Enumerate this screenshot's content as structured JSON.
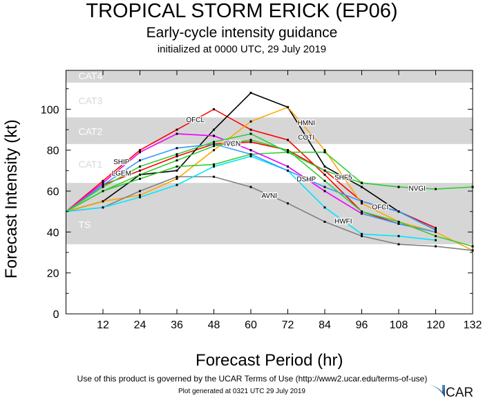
{
  "chart_data": {
    "type": "line",
    "title": "TROPICAL STORM ERICK (EP06)",
    "subtitle": "Early-cycle intensity guidance",
    "initialized": "initialized at 0000 UTC, 29 July 2019",
    "xlabel": "Forecast Period (hr)",
    "ylabel": "Forecast Intensity (kt)",
    "xlim": [
      0,
      132
    ],
    "ylim": [
      0,
      119
    ],
    "xticks": [
      12,
      24,
      36,
      48,
      60,
      72,
      84,
      96,
      108,
      120,
      132
    ],
    "yticks": [
      0,
      20,
      40,
      60,
      80,
      100
    ],
    "bands": [
      {
        "label": "TS",
        "from": 34,
        "to": 64,
        "shade": true
      },
      {
        "label": "CAT1",
        "from": 64,
        "to": 83,
        "shade": false
      },
      {
        "label": "CAT2",
        "from": 83,
        "to": 96,
        "shade": true
      },
      {
        "label": "CAT3",
        "from": 96,
        "to": 113,
        "shade": false
      },
      {
        "label": "CAT4",
        "from": 113,
        "to": 119,
        "shade": true
      }
    ],
    "x": [
      0,
      12,
      24,
      36,
      48,
      60,
      72,
      84,
      96,
      108,
      120,
      132
    ],
    "series": [
      {
        "name": "OFCL",
        "color": "#ff0000",
        "values": [
          50,
          65,
          80,
          90,
          100,
          90,
          85,
          68,
          50,
          44,
          40,
          null
        ],
        "label_at": 4
      },
      {
        "name": "OFCI",
        "color": "#ff0000",
        "values": [
          50,
          63,
          70,
          77,
          83,
          84,
          80,
          70,
          55,
          50,
          42,
          null
        ],
        "label_at": 9
      },
      {
        "name": "COTI",
        "color": "#000000",
        "values": [
          50,
          55,
          68,
          70,
          90,
          108,
          101,
          72,
          62,
          50,
          41,
          null
        ],
        "label_at": 7
      },
      {
        "name": "HMNI",
        "color": "#ffa500",
        "values": [
          50,
          55,
          58,
          66,
          80,
          94,
          101,
          80,
          54,
          45,
          40,
          31
        ],
        "label_at": 7
      },
      {
        "name": "AVNI",
        "color": "#808080",
        "values": [
          50,
          52,
          60,
          67,
          67,
          62,
          54,
          45,
          38,
          34,
          33,
          31
        ],
        "label_at": 6
      },
      {
        "name": "HWFI",
        "color": "#00e5ff",
        "values": [
          50,
          52,
          57,
          63,
          72,
          77,
          70,
          52,
          39,
          38,
          36,
          null
        ],
        "label_at": 8
      },
      {
        "name": "NVGI",
        "color": "#33cc33",
        "values": [
          50,
          60,
          66,
          72,
          73,
          78,
          79,
          79,
          64,
          62,
          61,
          62
        ],
        "label_at": 10
      },
      {
        "name": "LGEM",
        "color": "#3399ff",
        "values": [
          50,
          63,
          75,
          81,
          83,
          78,
          70,
          62,
          55,
          50,
          41,
          null
        ],
        "label_at": 2
      },
      {
        "name": "SHIP",
        "color": "#3399ff",
        "values": [
          50,
          64,
          79,
          88,
          87,
          80,
          72,
          60,
          49,
          44,
          40,
          null
        ],
        "label_at": 2
      },
      {
        "name": "DSHP",
        "color": "#ff00ff",
        "values": [
          50,
          64,
          79,
          88,
          87,
          80,
          72,
          60,
          49,
          null,
          null,
          null
        ],
        "label_at": 7
      },
      {
        "name": "SHF5",
        "color": "#33cc33",
        "values": [
          50,
          62,
          72,
          78,
          84,
          88,
          79,
          70,
          64,
          62,
          null,
          null
        ],
        "label_at": 8
      },
      {
        "name": "IVCN",
        "color": "#33cc33",
        "values": [
          50,
          60,
          68,
          75,
          82,
          85,
          80,
          65,
          50,
          45,
          38,
          33
        ],
        "label_at": 5
      }
    ]
  },
  "footer": {
    "terms": "Use of this product is governed by the UCAR Terms of Use (http://www2.ucar.edu/terms-of-use)",
    "generated": "Plot generated at 0321 UTC   29 July 2019",
    "logo": "NCAR"
  }
}
